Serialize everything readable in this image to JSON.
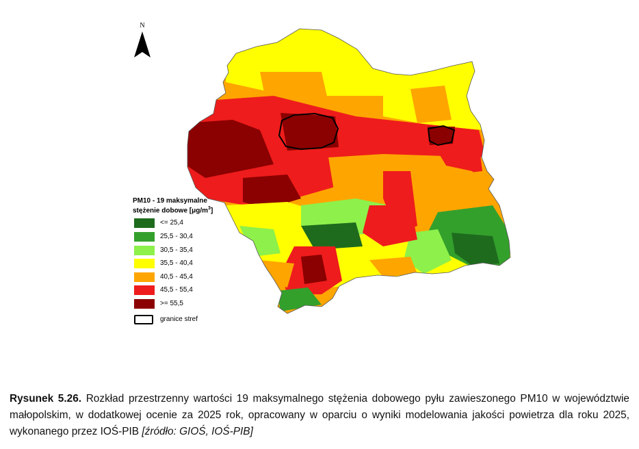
{
  "map": {
    "north_label": "N",
    "legend": {
      "title_line1": "PM10 - 19 maksymalne",
      "title_line2": "stężenie dobowe [μg/m",
      "title_sup": "3",
      "title_end": "]",
      "items": [
        {
          "label": "<= 25,4",
          "color": "#1e6b1e"
        },
        {
          "label": "25,5 - 30,4",
          "color": "#33a02c"
        },
        {
          "label": "30,5 - 35,4",
          "color": "#8ef04a"
        },
        {
          "label": "35,5 - 40,4",
          "color": "#ffff00"
        },
        {
          "label": "40,5 - 45,4",
          "color": "#ffa500"
        },
        {
          "label": "45,5 - 55,4",
          "color": "#ee1c1c"
        },
        {
          "label": ">= 55,5",
          "color": "#8b0000"
        }
      ],
      "boundary_label": "granice stref"
    }
  },
  "caption": {
    "number": "Rysunek 5.26.",
    "text": " Rozkład przestrzenny wartości 19 maksymalnego stężenia dobowego pyłu zawieszonego PM10 w województwie małopolskim, w dodatkowej ocenie za 2025 rok, opracowany w oparciu o wyniki modelowania jakości powietrza dla roku 2025, wykonanego przez IOŚ-PIB ",
    "source": "[źródło: GIOŚ, IOŚ-PIB]"
  }
}
